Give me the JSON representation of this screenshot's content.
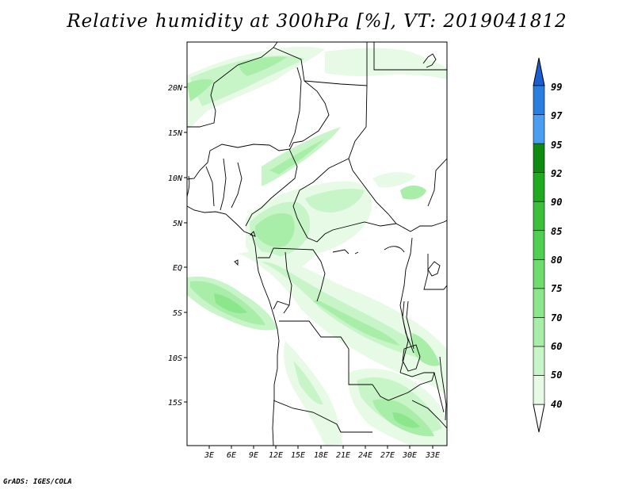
{
  "title": "Relative humidity at 300hPa [%], VT: 2019041812",
  "credit": "GrADS: IGES/COLA",
  "lat_labels": [
    "20N",
    "15N",
    "10N",
    "5N",
    "EQ",
    "5S",
    "10S",
    "15S"
  ],
  "lon_labels": [
    "3E",
    "6E",
    "9E",
    "12E",
    "15E",
    "18E",
    "21E",
    "24E",
    "27E",
    "30E",
    "33E"
  ],
  "colorbar": {
    "levels": [
      "40",
      "50",
      "60",
      "70",
      "75",
      "80",
      "85",
      "90",
      "92",
      "95",
      "97",
      "99"
    ],
    "colors": [
      "#ffffff",
      "#e6fae6",
      "#c8f5c8",
      "#a8eea8",
      "#8ce68c",
      "#6edc6e",
      "#50d050",
      "#3cc03c",
      "#1faa1f",
      "#0f8c0f",
      "#4a9ef0",
      "#2a7ee0",
      "#1a5fd0"
    ]
  },
  "colors": {
    "map_border": "#000000",
    "rh_light": "#e6fae6",
    "rh_mid": "#c8f5c8",
    "rh_high": "#a8eea8",
    "rh_max": "#8ce68c"
  }
}
